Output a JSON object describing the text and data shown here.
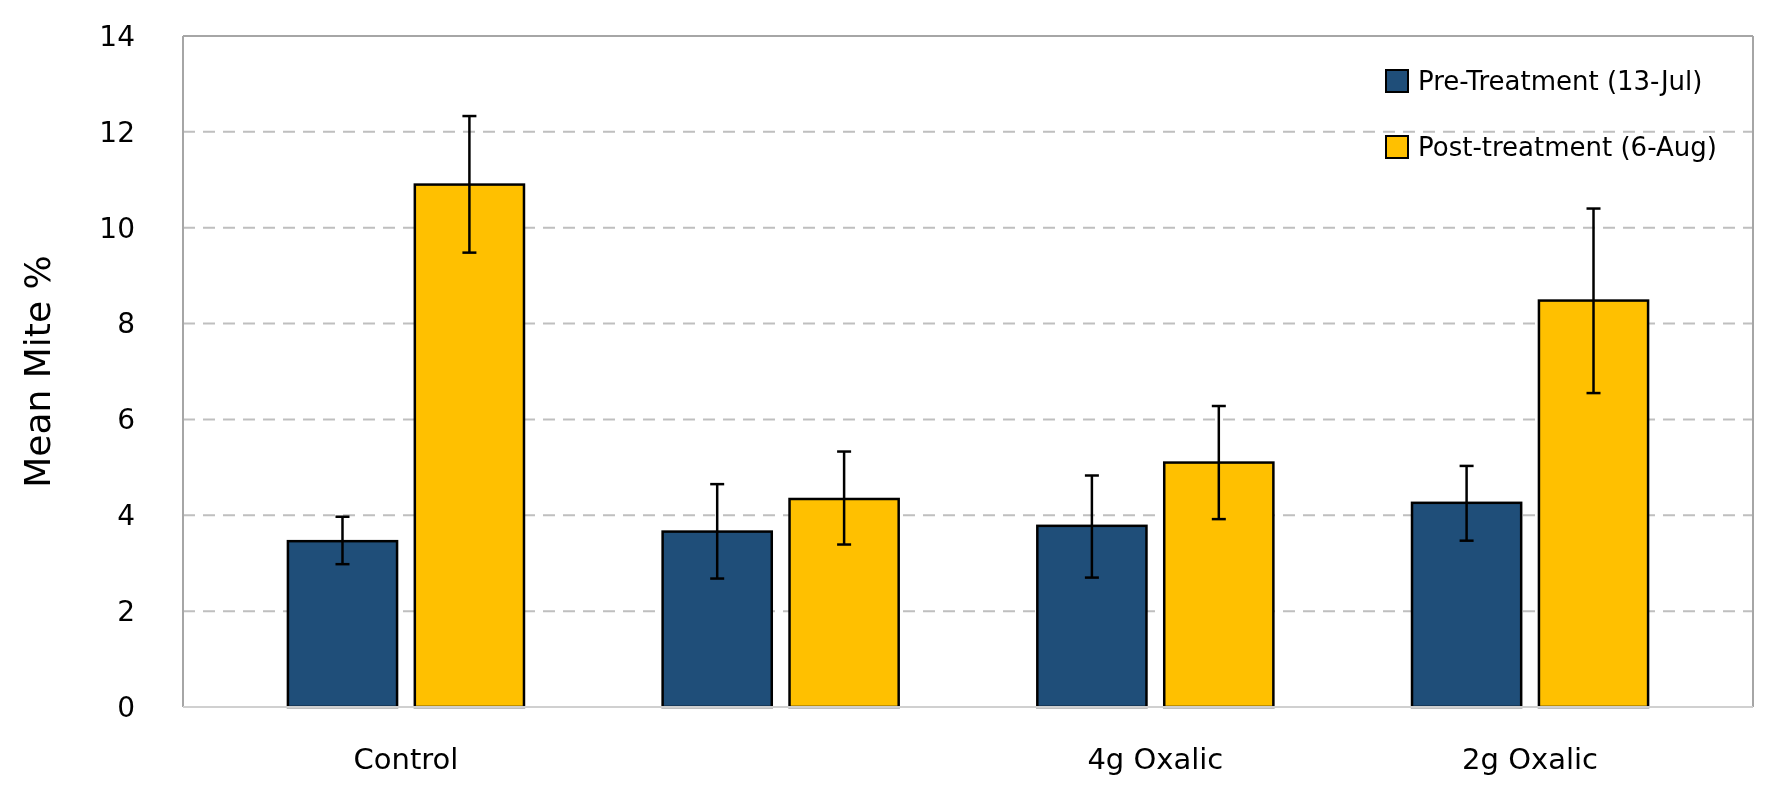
{
  "chart_data": {
    "type": "bar",
    "ylabel": "Mean Mite %",
    "categories": [
      "Control",
      null,
      "4g Oxalic",
      "2g Oxalic"
    ],
    "series": [
      {
        "name": "Pre-Treatment (13-Jul)",
        "color": "#1f4e79",
        "values": [
          3.46,
          3.66,
          3.78,
          4.26
        ],
        "errors": [
          [
            2.98,
            3.97
          ],
          [
            2.68,
            4.65
          ],
          [
            2.7,
            4.83
          ],
          [
            3.47,
            5.03
          ]
        ]
      },
      {
        "name": "Post-treatment (6-Aug)",
        "color": "#ffc000",
        "values": [
          10.9,
          4.34,
          5.1,
          8.48
        ],
        "errors": [
          [
            9.48,
            12.33
          ],
          [
            3.39,
            5.33
          ],
          [
            3.92,
            6.28
          ],
          [
            6.55,
            10.4
          ]
        ]
      }
    ],
    "ylim": [
      0,
      14
    ],
    "yticks": [
      0,
      2,
      4,
      6,
      8,
      10,
      12,
      14
    ],
    "grid": "y",
    "legend": "top right"
  }
}
